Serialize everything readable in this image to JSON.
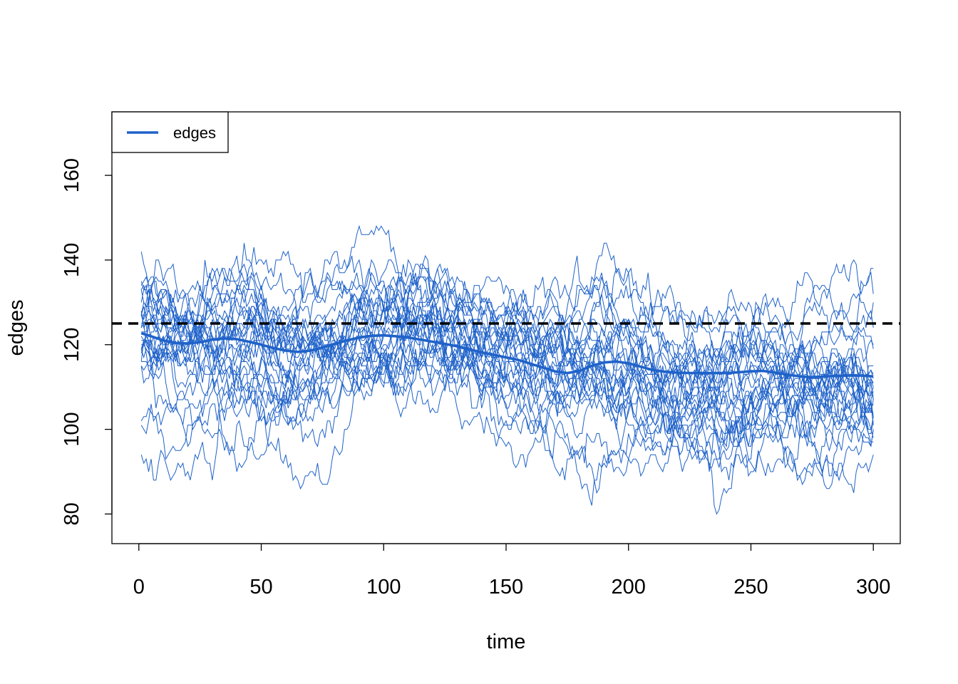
{
  "chart_data": {
    "type": "line",
    "title": "",
    "xlabel": "time",
    "ylabel": "edges",
    "xlim": [
      -11,
      311
    ],
    "ylim": [
      73,
      175
    ],
    "x_ticks": [
      0,
      50,
      100,
      150,
      200,
      250,
      300
    ],
    "y_ticks": [
      80,
      100,
      120,
      140,
      160
    ],
    "grid": false,
    "legend": {
      "position": "top-left",
      "entries": [
        "edges"
      ]
    },
    "series_color": "#1f62c9",
    "target_line": {
      "value": 125,
      "color": "#000000",
      "style": "dashed"
    },
    "simulation_count": 30,
    "time_range": [
      1,
      300
    ],
    "mean_series": {
      "name": "edges",
      "x": [
        1,
        5,
        10,
        15,
        20,
        25,
        30,
        35,
        40,
        45,
        50,
        55,
        60,
        65,
        70,
        75,
        80,
        85,
        90,
        95,
        100,
        105,
        110,
        115,
        120,
        125,
        130,
        135,
        140,
        145,
        150,
        155,
        160,
        165,
        170,
        175,
        180,
        185,
        190,
        195,
        200,
        205,
        210,
        215,
        220,
        225,
        230,
        235,
        240,
        245,
        250,
        255,
        260,
        265,
        270,
        275,
        280,
        285,
        290,
        295,
        300
      ],
      "values": [
        122.7,
        122.0,
        121.0,
        120.4,
        120.3,
        120.6,
        121.2,
        121.5,
        121.3,
        120.7,
        120.0,
        119.2,
        118.6,
        118.3,
        118.6,
        119.3,
        120.2,
        121.0,
        121.7,
        122.1,
        122.2,
        122.0,
        121.7,
        121.2,
        120.7,
        120.2,
        119.6,
        118.9,
        118.2,
        117.6,
        117.0,
        116.4,
        115.5,
        114.6,
        113.7,
        113.3,
        113.8,
        115.0,
        115.8,
        116.0,
        115.6,
        114.8,
        114.0,
        113.6,
        113.4,
        113.3,
        113.3,
        113.3,
        113.3,
        113.5,
        113.7,
        113.8,
        113.4,
        112.9,
        112.5,
        112.3,
        112.5,
        112.6,
        112.7,
        112.7,
        112.5
      ]
    }
  }
}
